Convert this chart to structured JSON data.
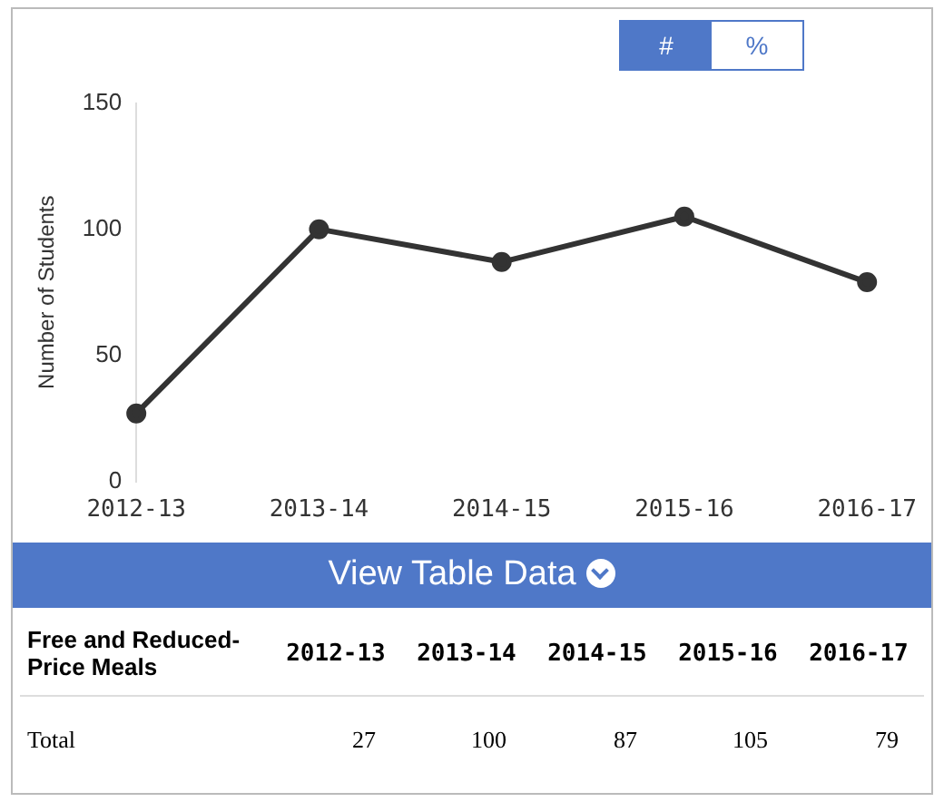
{
  "chart_data": {
    "type": "line",
    "ylabel": "Number of Students",
    "categories": [
      "2012-13",
      "2013-14",
      "2014-15",
      "2015-16",
      "2016-17"
    ],
    "values": [
      27,
      100,
      87,
      105,
      79
    ],
    "color": "#333333",
    "marker": "circle",
    "ylim": [
      0,
      150
    ],
    "yticks": [
      0,
      50,
      100,
      150
    ],
    "annotations": [
      "#",
      "%",
      "View Table Data",
      "Free and Reduced-Price Meals",
      "Total",
      "27",
      "100",
      "87",
      "105",
      "79"
    ]
  }
}
